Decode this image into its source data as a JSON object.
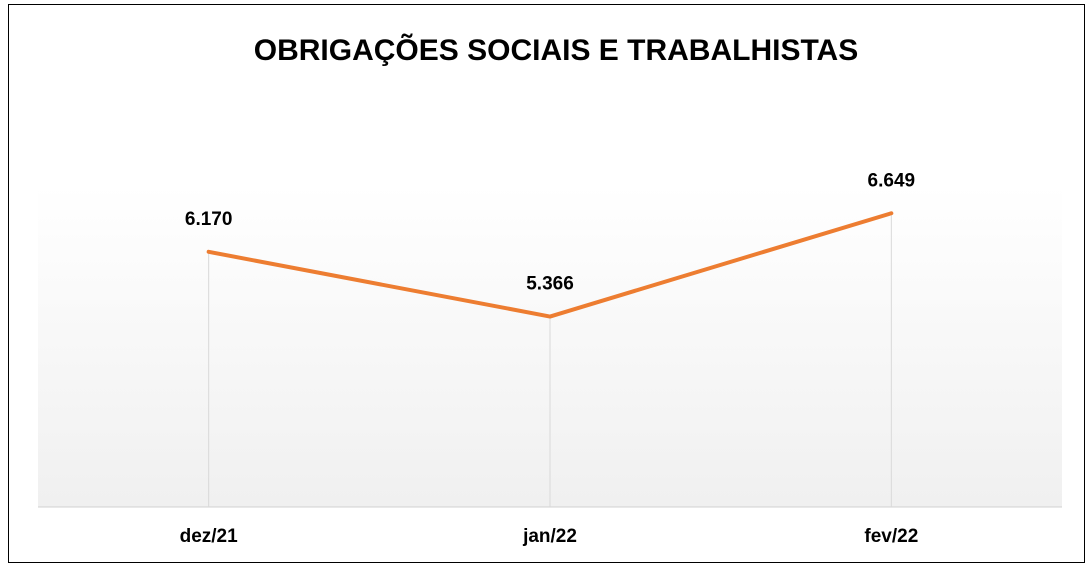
{
  "chart_data": {
    "type": "line",
    "title": "OBRIGAÇÕES SOCIAIS E TRABALHISTAS",
    "categories": [
      "dez/21",
      "jan/22",
      "fev/22"
    ],
    "values": [
      6170,
      5366,
      6649
    ],
    "value_labels": [
      "6.170",
      "5.366",
      "6.649"
    ],
    "color": "#ed7d31",
    "ylim": [
      3000,
      7000
    ]
  }
}
